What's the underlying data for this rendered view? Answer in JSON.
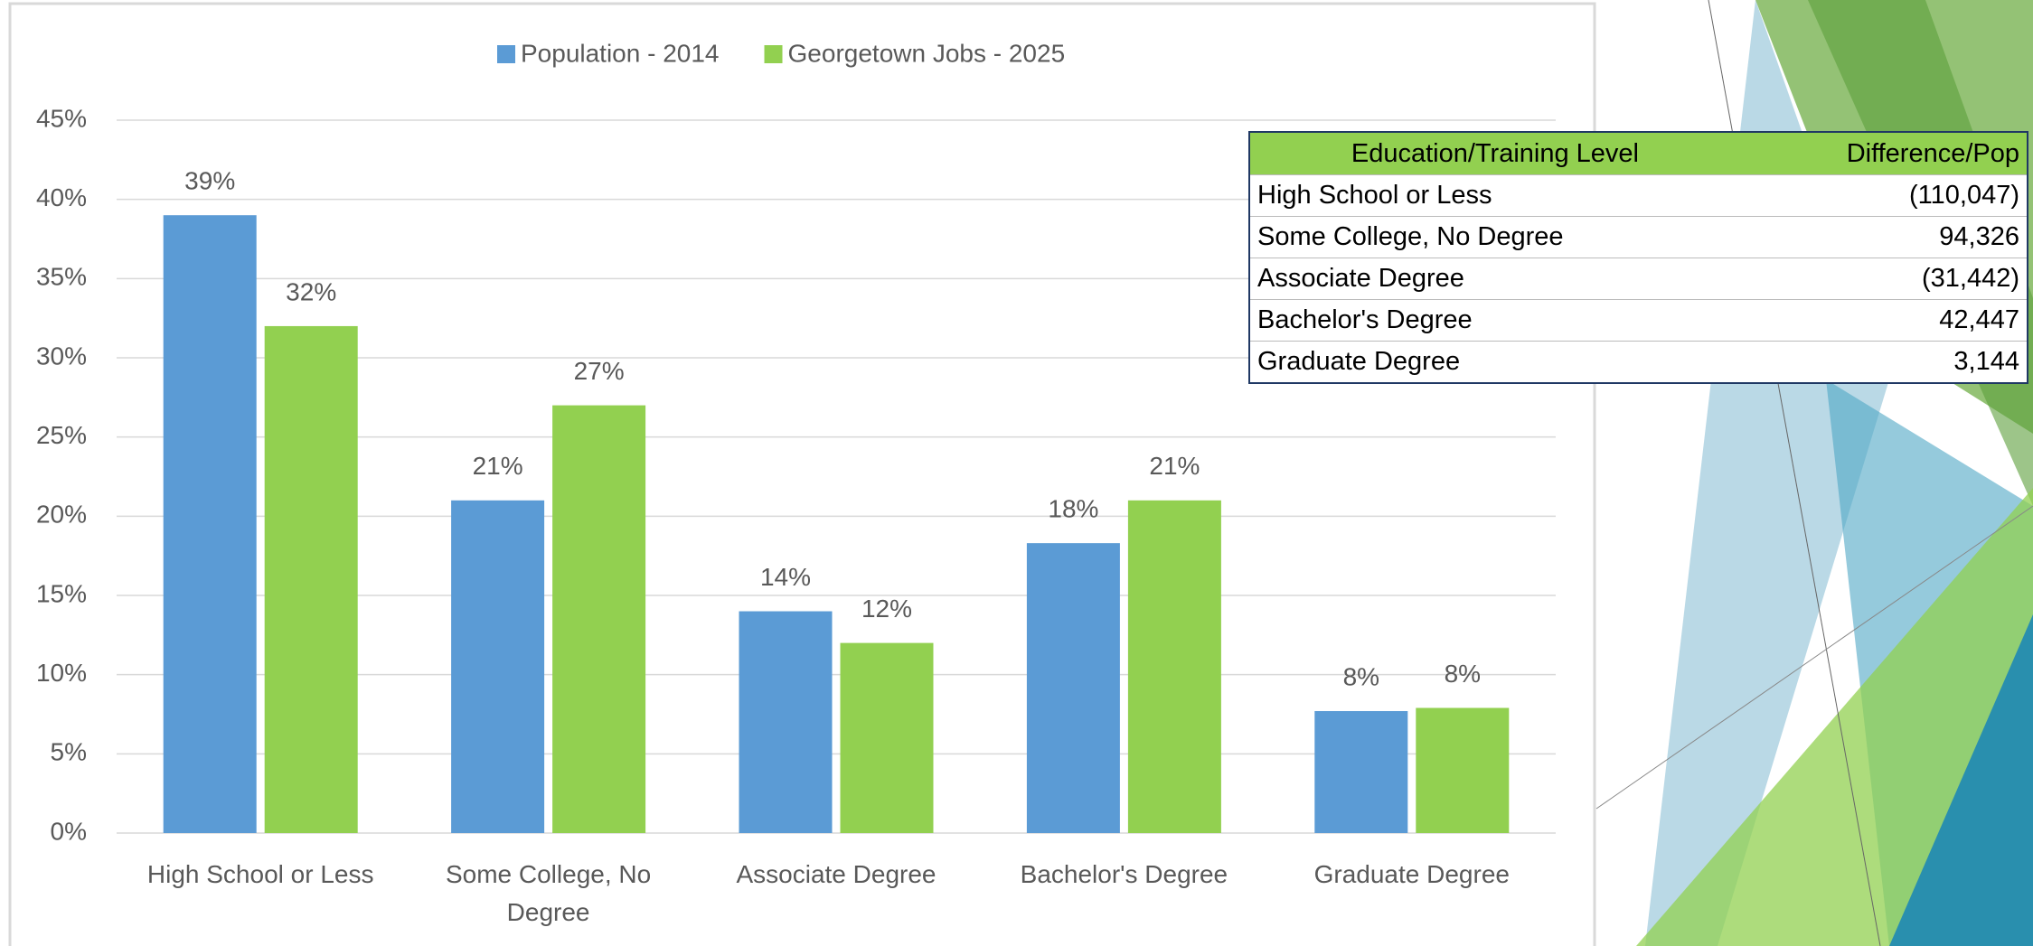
{
  "chart_data": {
    "type": "bar",
    "categories": [
      "High School or Less",
      "Some College, No Degree",
      "Associate Degree",
      "Bachelor's Degree",
      "Graduate Degree"
    ],
    "series": [
      {
        "name": "Population - 2014",
        "color": "#5b9bd5",
        "values": [
          39,
          21,
          14,
          18.3,
          7.7
        ],
        "value_labels": [
          "39%",
          "21%",
          "14%",
          "18%",
          "8%"
        ]
      },
      {
        "name": "Georgetown Jobs - 2025",
        "color": "#92d050",
        "values": [
          32,
          27,
          12,
          21,
          7.9
        ],
        "value_labels": [
          "32%",
          "27%",
          "12%",
          "21%",
          "8%"
        ]
      }
    ],
    "ylim": [
      0,
      45
    ],
    "yticks": [
      {
        "value": 0,
        "label": "0%"
      },
      {
        "value": 5,
        "label": "5%"
      },
      {
        "value": 10,
        "label": "10%"
      },
      {
        "value": 15,
        "label": "15%"
      },
      {
        "value": 20,
        "label": "20%"
      },
      {
        "value": 25,
        "label": "25%"
      },
      {
        "value": 30,
        "label": "30%"
      },
      {
        "value": 35,
        "label": "35%"
      },
      {
        "value": 40,
        "label": "40%"
      },
      {
        "value": 45,
        "label": "45%"
      }
    ],
    "grid": true,
    "legend": "top"
  },
  "table": {
    "columns": [
      "Education/Training Level",
      "Difference/Pop"
    ],
    "rows": [
      [
        "High School or Less",
        "(110,047)"
      ],
      [
        "Some College, No Degree",
        "94,326"
      ],
      [
        "Associate Degree",
        "(31,442)"
      ],
      [
        "Bachelor's Degree",
        "42,447"
      ],
      [
        "Graduate Degree",
        "3,144"
      ]
    ]
  }
}
